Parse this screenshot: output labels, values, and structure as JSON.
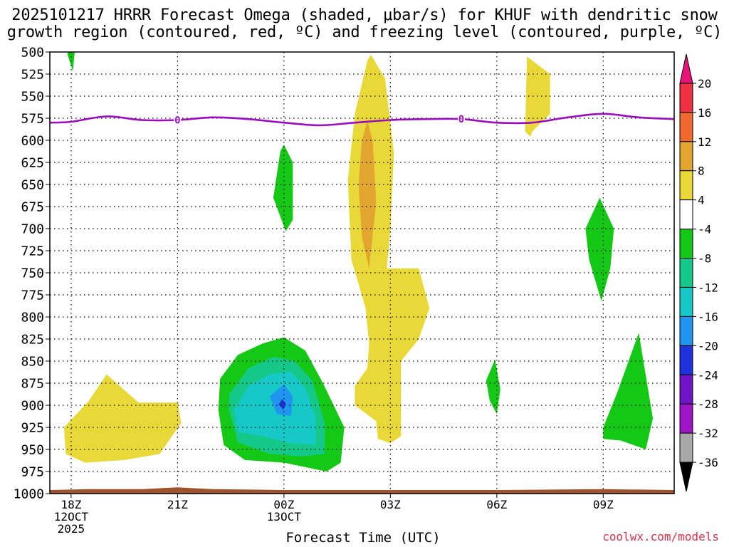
{
  "chart_data": {
    "type": "contour",
    "title_line1": "2025101217 HRRR Forecast Omega (shaded, μbar/s) for KHUF with dendritic snow",
    "title_line2": "growth region (contoured, red, ºC) and freezing level (contoured, purple, ºC)",
    "xlabel": "Forecast Time (UTC)",
    "ylabel": "",
    "x_ticks": [
      {
        "hour": 0,
        "lines": [
          "18Z",
          "12OCT",
          "2025"
        ]
      },
      {
        "hour": 3,
        "lines": [
          "21Z"
        ]
      },
      {
        "hour": 6,
        "lines": [
          "00Z",
          "13OCT"
        ]
      },
      {
        "hour": 9,
        "lines": [
          "03Z"
        ]
      },
      {
        "hour": 12,
        "lines": [
          "06Z"
        ]
      },
      {
        "hour": 15,
        "lines": [
          "09Z"
        ]
      }
    ],
    "xlim": [
      -0.6,
      17.0
    ],
    "y_ticks": [
      500,
      525,
      550,
      575,
      600,
      625,
      650,
      675,
      700,
      725,
      750,
      775,
      800,
      825,
      850,
      875,
      900,
      925,
      950,
      975,
      1000
    ],
    "ylim": [
      1000,
      500
    ],
    "colorbar": {
      "ticks": [
        "20",
        "16",
        "12",
        "8",
        "4",
        "-4",
        "-8",
        "-12",
        "-16",
        "-20",
        "-24",
        "-28",
        "-32",
        "-36"
      ],
      "colors": [
        "#e8147a",
        "#ee3040",
        "#f06a30",
        "#e2a530",
        "#e8d838",
        "#ffffff",
        "#16c816",
        "#14c888",
        "#16c8c8",
        "#1e96f0",
        "#1e32dc",
        "#7014c8",
        "#a014c8",
        "#a8a8a8",
        "#000000"
      ]
    },
    "omega_regions": [
      {
        "name": "green-top-left",
        "color": "#16c816",
        "points": [
          [
            -0.1,
            500
          ],
          [
            0.1,
            500
          ],
          [
            0.05,
            522
          ],
          [
            -0.1,
            503
          ]
        ]
      },
      {
        "name": "yellow-low-left",
        "color": "#e8d838",
        "points": [
          [
            -0.2,
            925
          ],
          [
            0.5,
            895
          ],
          [
            1.0,
            865
          ],
          [
            1.9,
            897
          ],
          [
            3.0,
            897
          ],
          [
            3.1,
            920
          ],
          [
            2.5,
            955
          ],
          [
            1.5,
            962
          ],
          [
            0.4,
            965
          ],
          [
            -0.15,
            955
          ],
          [
            -0.2,
            925
          ]
        ]
      },
      {
        "name": "green-mid-00z",
        "color": "#16c816",
        "points": [
          [
            5.7,
            665
          ],
          [
            5.9,
            612
          ],
          [
            6.0,
            605
          ],
          [
            6.25,
            625
          ],
          [
            6.25,
            690
          ],
          [
            6.05,
            703
          ],
          [
            5.7,
            665
          ]
        ]
      },
      {
        "name": "green-big-00z",
        "color": "#16c816",
        "points": [
          [
            4.2,
            870
          ],
          [
            4.7,
            843
          ],
          [
            5.4,
            830
          ],
          [
            6.0,
            823
          ],
          [
            6.6,
            838
          ],
          [
            7.1,
            875
          ],
          [
            7.7,
            925
          ],
          [
            7.6,
            965
          ],
          [
            7.2,
            975
          ],
          [
            6.0,
            965
          ],
          [
            4.9,
            962
          ],
          [
            4.3,
            945
          ],
          [
            4.15,
            905
          ],
          [
            4.2,
            870
          ]
        ]
      },
      {
        "name": "teal-inner-00z",
        "color": "#14c888",
        "points": [
          [
            4.45,
            888
          ],
          [
            5.0,
            858
          ],
          [
            5.7,
            845
          ],
          [
            6.3,
            850
          ],
          [
            6.8,
            872
          ],
          [
            7.15,
            920
          ],
          [
            7.15,
            955
          ],
          [
            6.5,
            958
          ],
          [
            5.6,
            955
          ],
          [
            4.7,
            942
          ],
          [
            4.45,
            905
          ],
          [
            4.45,
            888
          ]
        ]
      },
      {
        "name": "cyan-core-00z",
        "color": "#16c8c8",
        "points": [
          [
            4.6,
            905
          ],
          [
            5.0,
            878
          ],
          [
            5.6,
            865
          ],
          [
            6.2,
            862
          ],
          [
            6.6,
            880
          ],
          [
            6.9,
            915
          ],
          [
            6.9,
            945
          ],
          [
            6.2,
            943
          ],
          [
            5.4,
            935
          ],
          [
            4.7,
            930
          ],
          [
            4.6,
            905
          ]
        ]
      },
      {
        "name": "blue-core-00z",
        "color": "#1e96f0",
        "points": [
          [
            5.6,
            890
          ],
          [
            6.0,
            876
          ],
          [
            6.25,
            890
          ],
          [
            6.2,
            912
          ],
          [
            5.8,
            910
          ],
          [
            5.6,
            890
          ]
        ]
      },
      {
        "name": "darkblue-core-00z",
        "color": "#1e32dc",
        "points": [
          [
            5.85,
            899
          ],
          [
            5.95,
            893
          ],
          [
            6.05,
            898
          ],
          [
            5.98,
            905
          ],
          [
            5.85,
            899
          ]
        ]
      },
      {
        "name": "yellow-plume-02z",
        "color": "#e8d838",
        "points": [
          [
            7.8,
            645
          ],
          [
            8.0,
            570
          ],
          [
            8.35,
            510
          ],
          [
            8.45,
            503
          ],
          [
            8.85,
            530
          ],
          [
            9.1,
            615
          ],
          [
            9.0,
            700
          ],
          [
            8.9,
            745
          ],
          [
            9.8,
            745
          ],
          [
            10.1,
            790
          ],
          [
            9.8,
            825
          ],
          [
            9.3,
            850
          ],
          [
            9.3,
            935
          ],
          [
            9.0,
            943
          ],
          [
            8.65,
            938
          ],
          [
            8.6,
            918
          ],
          [
            8.0,
            900
          ],
          [
            8.0,
            878
          ],
          [
            8.35,
            858
          ],
          [
            8.4,
            830
          ],
          [
            8.3,
            790
          ],
          [
            7.9,
            735
          ],
          [
            7.8,
            645
          ]
        ]
      },
      {
        "name": "orange-plume-02z",
        "color": "#e2a530",
        "points": [
          [
            8.2,
            600
          ],
          [
            8.35,
            578
          ],
          [
            8.5,
            600
          ],
          [
            8.6,
            670
          ],
          [
            8.4,
            745
          ],
          [
            8.2,
            710
          ],
          [
            8.1,
            650
          ],
          [
            8.2,
            600
          ]
        ]
      },
      {
        "name": "green-small-06z",
        "color": "#16c816",
        "points": [
          [
            11.7,
            872
          ],
          [
            11.95,
            848
          ],
          [
            12.1,
            882
          ],
          [
            12.0,
            910
          ],
          [
            11.8,
            895
          ],
          [
            11.7,
            872
          ]
        ]
      },
      {
        "name": "yellow-top-07z",
        "color": "#e8d838",
        "points": [
          [
            12.85,
            505
          ],
          [
            13.5,
            525
          ],
          [
            13.5,
            570
          ],
          [
            13.3,
            578
          ],
          [
            13.0,
            590
          ],
          [
            12.95,
            596
          ],
          [
            12.8,
            590
          ],
          [
            12.85,
            505
          ]
        ]
      },
      {
        "name": "green-mid-09z",
        "color": "#16c816",
        "points": [
          [
            14.5,
            700
          ],
          [
            14.9,
            665
          ],
          [
            15.3,
            700
          ],
          [
            15.2,
            745
          ],
          [
            14.95,
            782
          ],
          [
            14.6,
            735
          ],
          [
            14.5,
            700
          ]
        ]
      },
      {
        "name": "green-low-09z",
        "color": "#16c816",
        "points": [
          [
            15.0,
            925
          ],
          [
            15.4,
            885
          ],
          [
            16.0,
            818
          ],
          [
            16.4,
            915
          ],
          [
            16.2,
            950
          ],
          [
            15.5,
            940
          ],
          [
            15.0,
            938
          ],
          [
            15.0,
            925
          ]
        ]
      }
    ],
    "freezing_level": {
      "label": "0",
      "label_hours": [
        3.0,
        11.0
      ],
      "x": [
        -0.6,
        0.0,
        1.0,
        2.0,
        3.0,
        4.0,
        5.0,
        6.0,
        7.0,
        8.0,
        9.0,
        10.0,
        11.0,
        12.0,
        13.0,
        14.0,
        15.0,
        16.0,
        17.0
      ],
      "y": [
        580,
        579,
        573,
        577,
        577,
        574,
        576,
        580,
        583,
        580,
        577,
        576,
        576,
        580,
        580,
        574,
        570,
        574,
        576
      ]
    },
    "terrain": {
      "x": [
        -0.6,
        0.5,
        2.0,
        3.0,
        4.0,
        6.0,
        9.0,
        12.0,
        15.0,
        17.0
      ],
      "y": [
        996,
        995,
        995,
        993,
        995,
        996,
        996,
        996,
        995,
        996
      ]
    }
  },
  "credit": "coolwx.com/models"
}
